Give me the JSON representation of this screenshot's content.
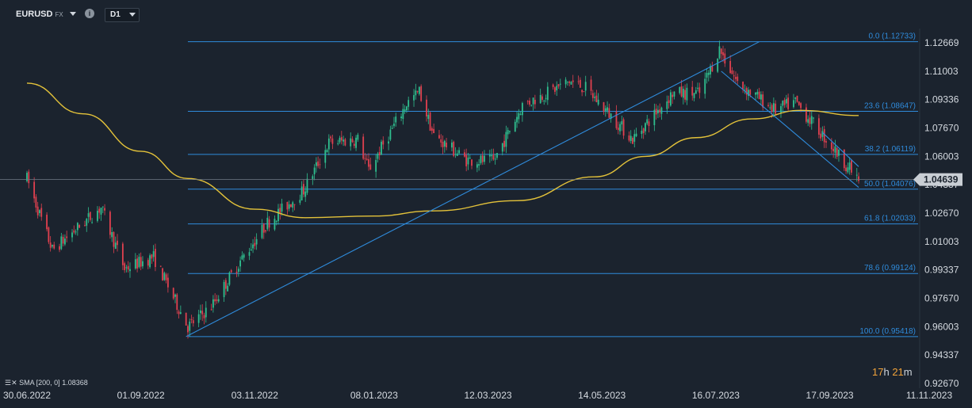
{
  "toolbar": {
    "symbol": "EURUSD",
    "symbol_type": "FX",
    "info_icon": "i",
    "timeframe": "D1"
  },
  "chart_data": {
    "type": "candlestick",
    "symbol": "EURUSD",
    "timeframe": "D1",
    "x_tick_labels": [
      "30.06.2022",
      "01.09.2022",
      "03.11.2022",
      "08.01.2023",
      "12.03.2023",
      "14.05.2023",
      "16.07.2023",
      "17.09.2023",
      "11.11.2023"
    ],
    "y_tick_labels": [
      "1.12669",
      "1.11003",
      "1.09336",
      "1.07670",
      "1.06003",
      "1.04337",
      "1.02670",
      "1.01003",
      "0.99337",
      "0.97670",
      "0.96003",
      "0.94337",
      "0.92670"
    ],
    "ylim": [
      0.9267,
      1.13
    ],
    "current_price": "1.04639",
    "close_path": [
      [
        "2022-06-30",
        1.047
      ],
      [
        "2022-07-14",
        1.005
      ],
      [
        "2022-08-10",
        1.03
      ],
      [
        "2022-08-23",
        0.994
      ],
      [
        "2022-09-08",
        1.001
      ],
      [
        "2022-09-27",
        0.96
      ],
      [
        "2022-10-10",
        0.972
      ],
      [
        "2022-10-25",
        0.997
      ],
      [
        "2022-11-10",
        1.021
      ],
      [
        "2022-11-30",
        1.04
      ],
      [
        "2022-12-14",
        1.068
      ],
      [
        "2022-12-30",
        1.07
      ],
      [
        "2023-01-05",
        1.052
      ],
      [
        "2023-01-26",
        1.091
      ],
      [
        "2023-02-02",
        1.098
      ],
      [
        "2023-02-10",
        1.072
      ],
      [
        "2023-02-28",
        1.058
      ],
      [
        "2023-03-15",
        1.057
      ],
      [
        "2023-03-31",
        1.09
      ],
      [
        "2023-04-26",
        1.104
      ],
      [
        "2023-05-05",
        1.1
      ],
      [
        "2023-05-31",
        1.07
      ],
      [
        "2023-06-22",
        1.097
      ],
      [
        "2023-07-07",
        1.097
      ],
      [
        "2023-07-18",
        1.123
      ],
      [
        "2023-07-28",
        1.103
      ],
      [
        "2023-08-18",
        1.087
      ],
      [
        "2023-08-29",
        1.092
      ],
      [
        "2023-09-18",
        1.066
      ],
      [
        "2023-10-03",
        1.046
      ]
    ],
    "sma": {
      "label": "SMA",
      "params": "[200, 0]",
      "value": "1.08368",
      "color": "#e3c23a",
      "path": [
        [
          "2022-06-30",
          1.103
        ],
        [
          "2022-07-31",
          1.085
        ],
        [
          "2022-09-01",
          1.063
        ],
        [
          "2022-09-27",
          1.047
        ],
        [
          "2022-11-03",
          1.029
        ],
        [
          "2022-12-01",
          1.024
        ],
        [
          "2023-01-08",
          1.025
        ],
        [
          "2023-02-10",
          1.028
        ],
        [
          "2023-03-28",
          1.034
        ],
        [
          "2023-05-10",
          1.048
        ],
        [
          "2023-06-07",
          1.06
        ],
        [
          "2023-07-05",
          1.071
        ],
        [
          "2023-08-05",
          1.082
        ],
        [
          "2023-09-01",
          1.087
        ],
        [
          "2023-10-03",
          1.084
        ]
      ]
    },
    "fibonacci": {
      "color": "#2f8bdb",
      "levels": [
        {
          "label": "0.0 (1.12733)",
          "value": 1.12733
        },
        {
          "label": "23.6 (1.08647)",
          "value": 1.08647
        },
        {
          "label": "38.2 (1.06119)",
          "value": 1.06119
        },
        {
          "label": "50.0 (1.04076)",
          "value": 1.04076
        },
        {
          "label": "61.8 (1.02033)",
          "value": 1.02033
        },
        {
          "label": "78.6 (0.99124)",
          "value": 0.99124
        },
        {
          "label": "100.0 (0.95418)",
          "value": 0.95418
        }
      ]
    },
    "trendlines": [
      {
        "name": "uptrend",
        "from": [
          "2022-09-26",
          0.9542
        ],
        "to": [
          "2023-08-09",
          1.1273
        ]
      },
      {
        "name": "down-channel-lower",
        "from": [
          "2023-07-19",
          1.11
        ],
        "to": [
          "2023-10-03",
          1.0418
        ]
      },
      {
        "name": "down-channel-upper",
        "from": [
          "2023-09-13",
          1.074
        ],
        "to": [
          "2023-10-03",
          1.054
        ]
      }
    ],
    "countdown": {
      "hours": "17",
      "h_unit": "h",
      "minutes": "21",
      "m_unit": "m"
    },
    "colors": {
      "bull": "#2fbf8f",
      "bear": "#e0404f",
      "grid_bg": "#1b232e",
      "axis_text": "#d5dae0",
      "price_tag": "#c9ced4"
    }
  }
}
